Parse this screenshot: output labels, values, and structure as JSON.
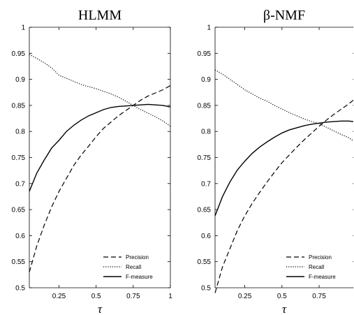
{
  "chart_data": [
    {
      "type": "line",
      "title": "HLMM",
      "xlabel": "τ",
      "ylabel": "",
      "xlim": [
        0.05,
        1.0
      ],
      "ylim": [
        0.5,
        1.0
      ],
      "xticks": [
        "0.25",
        "0.5",
        "0.75",
        "1"
      ],
      "yticks": [
        "0.5",
        "0.55",
        "0.6",
        "0.65",
        "0.7",
        "0.75",
        "0.8",
        "0.85",
        "0.9",
        "0.95",
        "1"
      ],
      "legend_position": "bottom-right",
      "series": [
        {
          "name": "Precision",
          "style": "dashed",
          "x": [
            0.05,
            0.1,
            0.15,
            0.2,
            0.25,
            0.3,
            0.35,
            0.4,
            0.45,
            0.5,
            0.55,
            0.6,
            0.65,
            0.7,
            0.75,
            0.8,
            0.85,
            0.9,
            0.95,
            1.0
          ],
          "values": [
            0.53,
            0.58,
            0.62,
            0.655,
            0.685,
            0.71,
            0.735,
            0.755,
            0.772,
            0.79,
            0.806,
            0.818,
            0.83,
            0.84,
            0.85,
            0.86,
            0.868,
            0.874,
            0.88,
            0.888
          ]
        },
        {
          "name": "Recall",
          "style": "dotted",
          "x": [
            0.05,
            0.1,
            0.15,
            0.2,
            0.25,
            0.3,
            0.35,
            0.4,
            0.45,
            0.5,
            0.55,
            0.6,
            0.65,
            0.7,
            0.75,
            0.8,
            0.85,
            0.9,
            0.95,
            1.0
          ],
          "values": [
            0.948,
            0.94,
            0.932,
            0.922,
            0.908,
            0.902,
            0.896,
            0.89,
            0.886,
            0.882,
            0.877,
            0.872,
            0.866,
            0.858,
            0.85,
            0.842,
            0.835,
            0.828,
            0.82,
            0.81
          ]
        },
        {
          "name": "F-measure",
          "style": "solid",
          "x": [
            0.05,
            0.1,
            0.15,
            0.2,
            0.25,
            0.3,
            0.35,
            0.4,
            0.45,
            0.5,
            0.55,
            0.6,
            0.65,
            0.7,
            0.75,
            0.8,
            0.85,
            0.9,
            0.95,
            1.0
          ],
          "values": [
            0.685,
            0.72,
            0.745,
            0.768,
            0.783,
            0.8,
            0.812,
            0.822,
            0.83,
            0.836,
            0.842,
            0.846,
            0.848,
            0.849,
            0.85,
            0.851,
            0.852,
            0.851,
            0.85,
            0.847
          ]
        }
      ]
    },
    {
      "type": "line",
      "title": "β-NMF",
      "xlabel": "τ",
      "ylabel": "",
      "xlim": [
        0.05,
        0.98
      ],
      "ylim": [
        0.5,
        1.0
      ],
      "xticks": [
        "0.25",
        "0.5",
        "0.75"
      ],
      "yticks": [
        "0.5",
        "0.55",
        "0.6",
        "0.65",
        "0.7",
        "0.75",
        "0.8",
        "0.85",
        "0.9",
        "0.95",
        "1"
      ],
      "legend_position": "bottom-right",
      "series": [
        {
          "name": "Precision",
          "style": "dashed",
          "x": [
            0.05,
            0.1,
            0.15,
            0.2,
            0.25,
            0.3,
            0.35,
            0.4,
            0.45,
            0.5,
            0.55,
            0.6,
            0.65,
            0.7,
            0.75,
            0.8,
            0.85,
            0.9,
            0.95,
            0.98
          ],
          "values": [
            0.49,
            0.54,
            0.575,
            0.61,
            0.638,
            0.662,
            0.683,
            0.703,
            0.722,
            0.74,
            0.755,
            0.77,
            0.784,
            0.797,
            0.81,
            0.822,
            0.833,
            0.843,
            0.853,
            0.86
          ]
        },
        {
          "name": "Recall",
          "style": "dotted",
          "x": [
            0.05,
            0.1,
            0.15,
            0.2,
            0.25,
            0.3,
            0.35,
            0.4,
            0.45,
            0.5,
            0.55,
            0.6,
            0.65,
            0.7,
            0.75,
            0.8,
            0.85,
            0.9,
            0.95,
            0.98
          ],
          "values": [
            0.918,
            0.91,
            0.9,
            0.89,
            0.88,
            0.872,
            0.864,
            0.858,
            0.85,
            0.843,
            0.836,
            0.83,
            0.824,
            0.819,
            0.815,
            0.808,
            0.801,
            0.794,
            0.788,
            0.782
          ]
        },
        {
          "name": "F-measure",
          "style": "solid",
          "x": [
            0.05,
            0.1,
            0.15,
            0.2,
            0.25,
            0.3,
            0.35,
            0.4,
            0.45,
            0.5,
            0.55,
            0.6,
            0.65,
            0.7,
            0.75,
            0.8,
            0.85,
            0.9,
            0.95,
            0.98
          ],
          "values": [
            0.638,
            0.675,
            0.703,
            0.726,
            0.743,
            0.758,
            0.77,
            0.78,
            0.789,
            0.797,
            0.803,
            0.807,
            0.811,
            0.814,
            0.816,
            0.818,
            0.819,
            0.82,
            0.82,
            0.819
          ]
        }
      ]
    }
  ]
}
